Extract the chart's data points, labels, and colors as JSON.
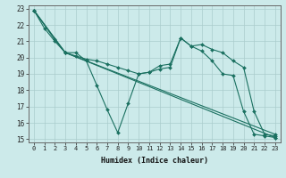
{
  "xlabel": "Humidex (Indice chaleur)",
  "bg_color": "#cceaea",
  "line_color": "#1a7060",
  "grid_color": "#aacccc",
  "xlim": [
    -0.5,
    23.5
  ],
  "ylim": [
    14.8,
    23.2
  ],
  "xticks": [
    0,
    1,
    2,
    3,
    4,
    5,
    6,
    7,
    8,
    9,
    10,
    11,
    12,
    13,
    14,
    15,
    16,
    17,
    18,
    19,
    20,
    21,
    22,
    23
  ],
  "yticks": [
    15,
    16,
    17,
    18,
    19,
    20,
    21,
    22,
    23
  ],
  "lines": [
    {
      "x": [
        0,
        1,
        2,
        3,
        4,
        5,
        6,
        7,
        8,
        9,
        10,
        11,
        12,
        13,
        14,
        15,
        16,
        17,
        18,
        19,
        20,
        21,
        22,
        23
      ],
      "y": [
        22.9,
        21.8,
        21.0,
        20.3,
        20.3,
        19.8,
        18.3,
        16.8,
        15.4,
        17.2,
        19.0,
        19.1,
        19.5,
        19.6,
        21.2,
        20.7,
        20.4,
        19.8,
        19.0,
        18.9,
        16.7,
        15.3,
        15.2,
        15.1
      ]
    },
    {
      "x": [
        0,
        3,
        23
      ],
      "y": [
        22.9,
        20.3,
        15.1
      ]
    },
    {
      "x": [
        0,
        3,
        23
      ],
      "y": [
        22.9,
        20.3,
        15.3
      ]
    },
    {
      "x": [
        0,
        2,
        3,
        4,
        5,
        6,
        7,
        8,
        9,
        10,
        11,
        12,
        13,
        14,
        15,
        16,
        17,
        18,
        19,
        20,
        21,
        22,
        23
      ],
      "y": [
        22.9,
        21.1,
        20.3,
        20.1,
        19.9,
        19.8,
        19.6,
        19.4,
        19.2,
        19.0,
        19.1,
        19.3,
        19.4,
        21.2,
        20.7,
        20.8,
        20.5,
        20.3,
        19.8,
        19.4,
        16.7,
        15.3,
        15.2
      ]
    }
  ]
}
